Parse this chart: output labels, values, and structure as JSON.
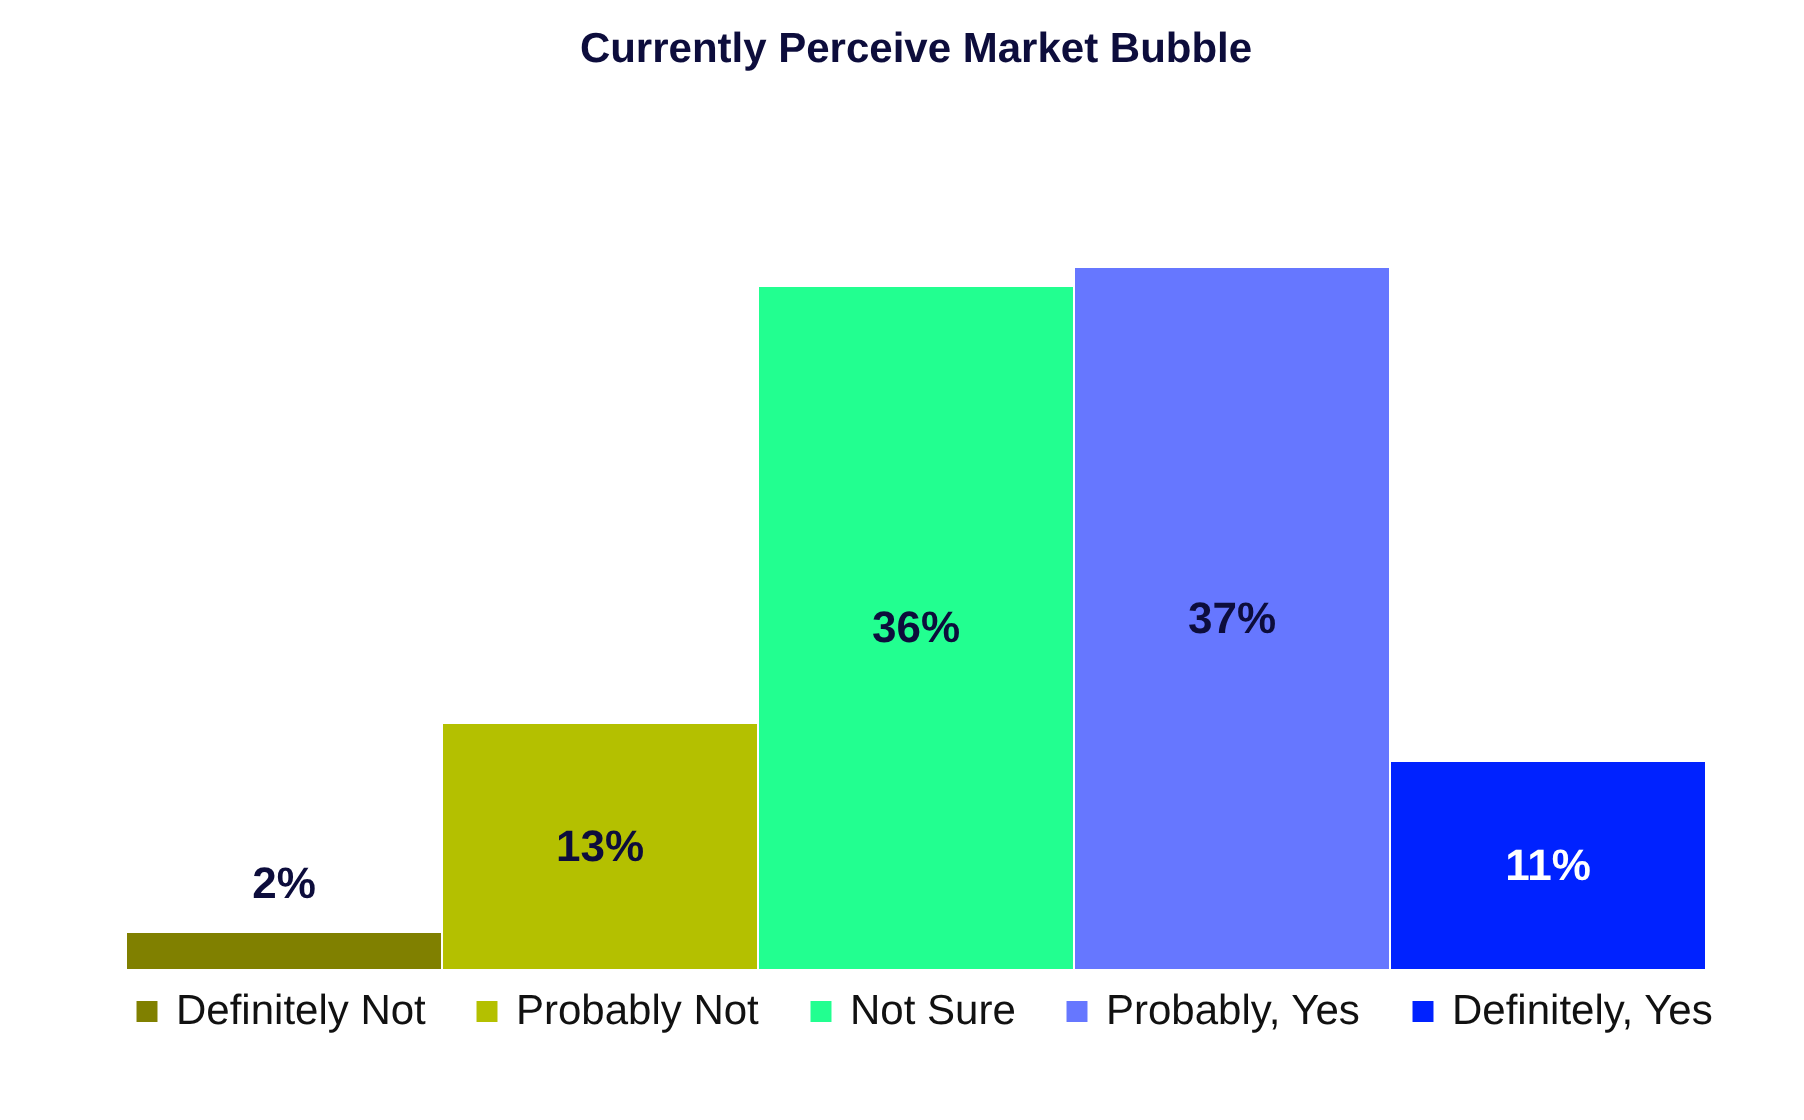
{
  "chart_data": {
    "type": "bar",
    "title": "Currently Perceive Market Bubble",
    "categories": [
      null
    ],
    "series": [
      {
        "name": "Definitely Not",
        "color": "#808000",
        "values": [
          2
        ],
        "value_labels": [
          "2%"
        ]
      },
      {
        "name": "Probably Not",
        "color": "#b4c000",
        "values": [
          13
        ],
        "value_labels": [
          "13%"
        ]
      },
      {
        "name": "Not Sure",
        "color": "#22ff90",
        "values": [
          36
        ],
        "value_labels": [
          "36%"
        ]
      },
      {
        "name": "Probably, Yes",
        "color": "#6677ff",
        "values": [
          37
        ],
        "value_labels": [
          "37%"
        ]
      },
      {
        "name": "Definitely, Yes",
        "color": "#0022ff",
        "values": [
          11
        ],
        "value_labels": [
          "11%"
        ]
      }
    ],
    "legend": "bottom",
    "grid": false,
    "tick_labels": false
  }
}
